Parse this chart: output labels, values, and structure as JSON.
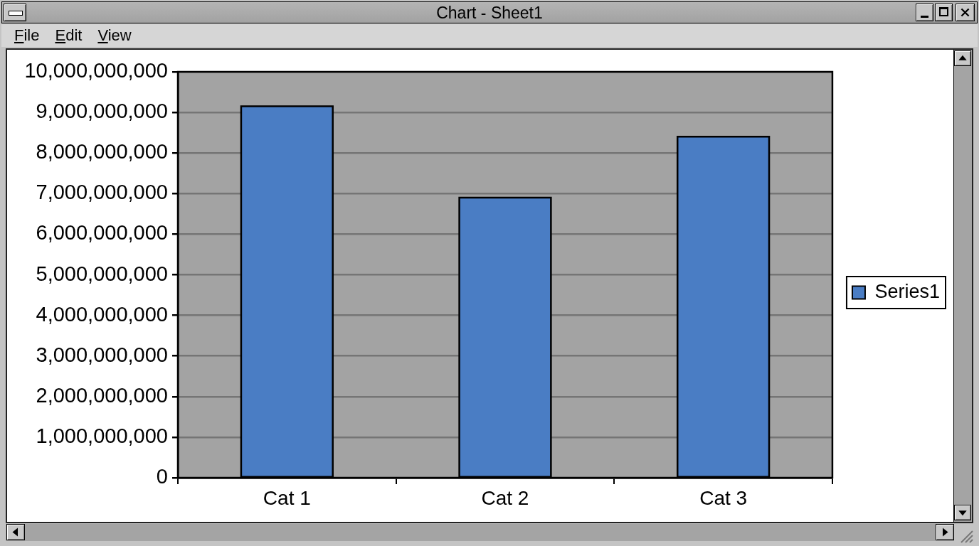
{
  "chart_data": {
    "type": "bar",
    "title": "Chart - Sheet1",
    "annotations": [
      "File",
      "Edit",
      "View"
    ],
    "categories": [
      "Cat 1",
      "Cat 2",
      "Cat 3"
    ],
    "series": [
      {
        "name": "Series1",
        "color": "#4a7dc4",
        "values": [
          9150000000,
          6900000000,
          8400000000
        ]
      }
    ],
    "ylim": [
      0,
      10000000000
    ],
    "yticks": [
      {
        "value": 0,
        "label": "0"
      },
      {
        "value": 1000000000,
        "label": "1,000,000,000"
      },
      {
        "value": 2000000000,
        "label": "2,000,000,000"
      },
      {
        "value": 3000000000,
        "label": "3,000,000,000"
      },
      {
        "value": 4000000000,
        "label": "4,000,000,000"
      },
      {
        "value": 5000000000,
        "label": "5,000,000,000"
      },
      {
        "value": 6000000000,
        "label": "6,000,000,000"
      },
      {
        "value": 7000000000,
        "label": "7,000,000,000"
      },
      {
        "value": 8000000000,
        "label": "8,000,000,000"
      },
      {
        "value": 9000000000,
        "label": "9,000,000,000"
      },
      {
        "value": 10000000000,
        "label": "10,000,000,000"
      }
    ],
    "grid": "y",
    "legend": "right"
  }
}
